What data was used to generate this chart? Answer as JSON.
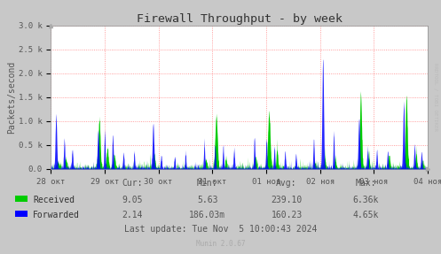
{
  "title": "Firewall Throughput - by week",
  "ylabel": "Packets/second",
  "background_color": "#c8c8c8",
  "plot_bg_color": "#ffffff",
  "grid_color": "#ff8080",
  "ymax": 3000,
  "yticks": [
    0,
    500,
    1000,
    1500,
    2000,
    2500,
    3000
  ],
  "ytick_labels": [
    "0.0",
    "0.5 k",
    "1.0 k",
    "1.5 k",
    "2.0 k",
    "2.5 k",
    "3.0 k"
  ],
  "xtick_labels": [
    "28 окт",
    "29 окт",
    "30 окт",
    "31 окт",
    "01 ноя",
    "02 ноя",
    "03 ноя",
    "04 ноя"
  ],
  "color_received": "#00cc00",
  "color_forwarded": "#0000ff",
  "stats_headers": [
    "Cur:",
    "Min:",
    "Avg:",
    "Max:"
  ],
  "stats_received": [
    "9.05",
    "5.63",
    "239.10",
    "6.36k"
  ],
  "stats_forwarded": [
    "2.14",
    "186.03m",
    "160.23",
    "4.65k"
  ],
  "last_update": "Last update: Tue Nov  5 10:00:43 2024",
  "munin_version": "Munin 2.0.67",
  "watermark": "RRDTOOL / TOBI OETIKER",
  "title_fontsize": 9.5,
  "label_fontsize": 7,
  "tick_fontsize": 6.5,
  "stats_fontsize": 7,
  "legend_fontsize": 7
}
